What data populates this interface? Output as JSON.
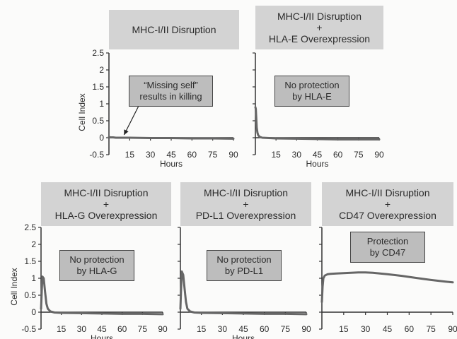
{
  "chart_data": [
    {
      "type": "line",
      "title_lines": [
        "MHC-I/II Disruption"
      ],
      "annotation_lines": [
        "“Missing self”",
        "results in killing"
      ],
      "xlabel": "Hours",
      "ylabel": "Cell Index",
      "x_ticks": [
        15,
        30,
        45,
        60,
        75,
        90
      ],
      "y_ticks": [
        "2.5",
        "2",
        "1.5",
        "1",
        "0.5",
        "0",
        "-0.5"
      ],
      "xlim": [
        0,
        90
      ],
      "ylim": [
        -0.5,
        2.5
      ],
      "show_y_tick_labels": true,
      "has_arrow": true,
      "series": [
        {
          "x": [
            0,
            1,
            2,
            3,
            5,
            10,
            15,
            30,
            45,
            60,
            75,
            90
          ],
          "y": [
            0.02,
            0.01,
            0.01,
            0.01,
            0.0,
            0.0,
            0.0,
            -0.01,
            -0.01,
            -0.02,
            -0.02,
            -0.03
          ]
        }
      ]
    },
    {
      "type": "line",
      "title_lines": [
        "MHC-I/II Disruption",
        "+",
        "HLA-E Overexpression"
      ],
      "annotation_lines": [
        "No protection",
        "by HLA-E"
      ],
      "xlabel": "Hours",
      "ylabel": "",
      "x_ticks": [
        15,
        30,
        45,
        60,
        75,
        90
      ],
      "y_ticks": [
        "2.5",
        "2",
        "1.5",
        "1",
        "0.5",
        "0",
        "-0.5"
      ],
      "xlim": [
        0,
        90
      ],
      "ylim": [
        -0.5,
        2.5
      ],
      "show_y_tick_labels": false,
      "has_arrow": false,
      "series": [
        {
          "x": [
            0,
            0.3,
            0.6,
            1,
            1.5,
            2,
            3,
            5,
            10,
            15,
            30,
            45,
            60,
            75,
            90
          ],
          "y": [
            0.9,
            0.85,
            0.6,
            0.3,
            0.15,
            0.08,
            0.03,
            0.0,
            -0.01,
            -0.02,
            -0.03,
            -0.04,
            -0.05,
            -0.05,
            -0.05
          ]
        }
      ]
    },
    {
      "type": "line",
      "title_lines": [
        "MHC-I/II Disruption",
        "+",
        "HLA-G Overexpression"
      ],
      "annotation_lines": [
        "No protection",
        "by HLA-G"
      ],
      "xlabel": "Hours",
      "ylabel": "Cell Index",
      "x_ticks": [
        15,
        30,
        45,
        60,
        75,
        90
      ],
      "y_ticks": [
        "2.5",
        "2",
        "1.5",
        "1",
        "0.5",
        "0",
        "-0.5"
      ],
      "xlim": [
        0,
        90
      ],
      "ylim": [
        -0.5,
        2.5
      ],
      "show_y_tick_labels": true,
      "has_arrow": false,
      "series": [
        {
          "x": [
            0,
            0.5,
            1,
            2,
            3,
            4,
            5,
            7,
            10,
            15,
            30,
            45,
            60,
            75,
            90
          ],
          "y": [
            0.1,
            0.6,
            1.05,
            1.0,
            0.6,
            0.25,
            0.1,
            0.02,
            -0.01,
            -0.02,
            -0.03,
            -0.04,
            -0.05,
            -0.05,
            -0.06
          ]
        }
      ]
    },
    {
      "type": "line",
      "title_lines": [
        "MHC-I/II Disruption",
        "+",
        "PD-L1 Overexpression"
      ],
      "annotation_lines": [
        "No protection",
        "by PD-L1"
      ],
      "xlabel": "Hours",
      "ylabel": "",
      "x_ticks": [
        15,
        30,
        45,
        60,
        75,
        90
      ],
      "y_ticks": [
        "2.5",
        "2",
        "1.5",
        "1",
        "0.5",
        "0",
        "-0.5"
      ],
      "xlim": [
        0,
        90
      ],
      "ylim": [
        -0.5,
        2.5
      ],
      "show_y_tick_labels": false,
      "has_arrow": false,
      "series": [
        {
          "x": [
            0,
            0.5,
            1,
            2,
            3,
            4,
            5,
            7,
            10,
            15,
            30,
            45,
            60,
            75,
            90
          ],
          "y": [
            0.1,
            0.7,
            1.2,
            1.1,
            0.7,
            0.3,
            0.1,
            0.02,
            -0.01,
            -0.02,
            -0.03,
            -0.04,
            -0.05,
            -0.05,
            -0.06
          ]
        }
      ]
    },
    {
      "type": "line",
      "title_lines": [
        "MHC-I/II Disruption",
        "+",
        "CD47 Overexpression"
      ],
      "annotation_lines": [
        "Protection",
        "by CD47"
      ],
      "xlabel": "",
      "ylabel": "",
      "x_ticks": [
        15,
        30,
        45,
        60,
        75,
        90
      ],
      "y_ticks": [
        "2.5",
        "2",
        "1.5",
        "1",
        "0.5",
        "0",
        "-0.5"
      ],
      "xlim": [
        0,
        90
      ],
      "ylim": [
        -0.5,
        2.5
      ],
      "show_y_tick_labels": false,
      "has_arrow": false,
      "series": [
        {
          "x": [
            0,
            0.5,
            1,
            2,
            3,
            4,
            6,
            10,
            15,
            20,
            25,
            30,
            35,
            40,
            45,
            55,
            60,
            70,
            75,
            85,
            90
          ],
          "y": [
            0.3,
            0.75,
            1.0,
            1.08,
            1.1,
            1.12,
            1.13,
            1.14,
            1.15,
            1.16,
            1.17,
            1.17,
            1.16,
            1.14,
            1.12,
            1.07,
            1.04,
            0.98,
            0.95,
            0.9,
            0.88
          ]
        }
      ]
    }
  ]
}
